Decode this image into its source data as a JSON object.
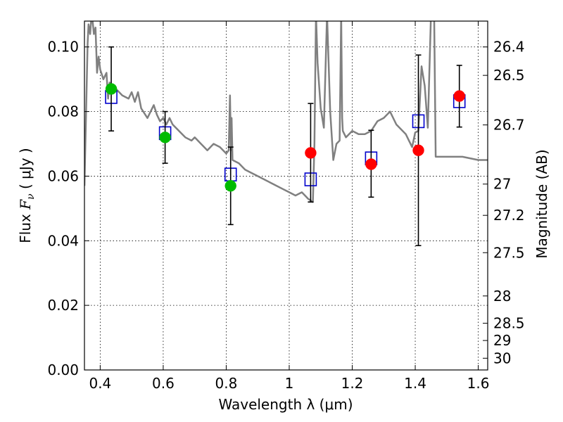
{
  "chart_data": {
    "type": "scatter",
    "xlabel": "Wavelength  λ (μm)",
    "ylabel": "Flux  F_ν  ( μJy )",
    "ylabel_parts": {
      "prefix": "Flux  ",
      "symbol": "F",
      "subscript": "ν",
      "suffix": "  ( μJy )"
    },
    "y2label": "Magnitude (AB)",
    "xlim": [
      0.35,
      1.63
    ],
    "ylim": [
      0.0,
      0.108
    ],
    "grid": true,
    "x_ticks": [
      {
        "value": 0.4,
        "label": "0.4"
      },
      {
        "value": 0.6,
        "label": "0.6"
      },
      {
        "value": 0.8,
        "label": "0.8"
      },
      {
        "value": 1.0,
        "label": "1"
      },
      {
        "value": 1.2,
        "label": "1.2"
      },
      {
        "value": 1.4,
        "label": "1.4"
      },
      {
        "value": 1.6,
        "label": "1.6"
      }
    ],
    "y_ticks": [
      {
        "value": 0.0,
        "label": "0.00"
      },
      {
        "value": 0.02,
        "label": "0.02"
      },
      {
        "value": 0.04,
        "label": "0.04"
      },
      {
        "value": 0.06,
        "label": "0.06"
      },
      {
        "value": 0.08,
        "label": "0.08"
      },
      {
        "value": 0.1,
        "label": "0.10"
      }
    ],
    "y2_ticks": [
      {
        "label": "26.4",
        "mag": 26.4
      },
      {
        "label": "26.5",
        "mag": 26.5
      },
      {
        "label": "26.7",
        "mag": 26.7
      },
      {
        "label": "27",
        "mag": 27.0
      },
      {
        "label": "27.2",
        "mag": 27.2
      },
      {
        "label": "27.5",
        "mag": 27.5
      },
      {
        "label": "28",
        "mag": 28.0
      },
      {
        "label": "28.5",
        "mag": 28.5
      },
      {
        "label": "29",
        "mag": 29.0
      },
      {
        "label": "30",
        "mag": 30.0
      }
    ],
    "observed_optical": {
      "color": "#00bb00",
      "points": [
        {
          "x": 0.435,
          "y": 0.087,
          "err_low": 0.074,
          "err_high": 0.1
        },
        {
          "x": 0.606,
          "y": 0.072,
          "err_low": 0.064,
          "err_high": 0.08
        },
        {
          "x": 0.814,
          "y": 0.057,
          "err_low": 0.045,
          "err_high": 0.069
        }
      ]
    },
    "observed_nir": {
      "color": "#ff0000",
      "points": [
        {
          "x": 1.068,
          "y": 0.0672,
          "err_low": 0.052,
          "err_high": 0.0825
        },
        {
          "x": 1.26,
          "y": 0.0637,
          "err_low": 0.0535,
          "err_high": 0.0742
        },
        {
          "x": 1.41,
          "y": 0.068,
          "err_low": 0.0385,
          "err_high": 0.0975
        },
        {
          "x": 1.54,
          "y": 0.0848,
          "err_low": 0.0752,
          "err_high": 0.0943
        }
      ]
    },
    "model_photometry": {
      "color": "#0000cc",
      "points": [
        {
          "x": 0.435,
          "y": 0.0845
        },
        {
          "x": 0.606,
          "y": 0.0733
        },
        {
          "x": 0.814,
          "y": 0.0605
        },
        {
          "x": 1.068,
          "y": 0.059
        },
        {
          "x": 1.26,
          "y": 0.0655
        },
        {
          "x": 1.41,
          "y": 0.077
        },
        {
          "x": 1.54,
          "y": 0.0832
        }
      ]
    },
    "model_spectrum": {
      "color": "#808080",
      "x": [
        0.35,
        0.36,
        0.363,
        0.368,
        0.372,
        0.376,
        0.38,
        0.385,
        0.39,
        0.395,
        0.4,
        0.41,
        0.42,
        0.425,
        0.43,
        0.44,
        0.45,
        0.47,
        0.49,
        0.5,
        0.51,
        0.52,
        0.53,
        0.55,
        0.57,
        0.58,
        0.59,
        0.6,
        0.61,
        0.62,
        0.63,
        0.65,
        0.67,
        0.69,
        0.7,
        0.72,
        0.74,
        0.76,
        0.78,
        0.8,
        0.808,
        0.812,
        0.815,
        0.817,
        0.82,
        0.84,
        0.86,
        0.88,
        0.9,
        0.92,
        0.94,
        0.96,
        0.98,
        1.0,
        1.02,
        1.04,
        1.05,
        1.06,
        1.075,
        1.08,
        1.085,
        1.09,
        1.1,
        1.11,
        1.12,
        1.13,
        1.14,
        1.15,
        1.16,
        1.165,
        1.168,
        1.17,
        1.18,
        1.2,
        1.22,
        1.24,
        1.26,
        1.28,
        1.3,
        1.32,
        1.34,
        1.36,
        1.37,
        1.38,
        1.39,
        1.4,
        1.41,
        1.42,
        1.43,
        1.44,
        1.45,
        1.46,
        1.465,
        1.47,
        1.5,
        1.55,
        1.6,
        1.63
      ],
      "y": [
        0.057,
        0.101,
        0.107,
        0.104,
        0.109,
        0.108,
        0.104,
        0.106,
        0.092,
        0.097,
        0.093,
        0.09,
        0.092,
        0.084,
        0.089,
        0.087,
        0.087,
        0.085,
        0.084,
        0.086,
        0.083,
        0.086,
        0.081,
        0.078,
        0.082,
        0.079,
        0.077,
        0.078,
        0.076,
        0.078,
        0.076,
        0.074,
        0.072,
        0.071,
        0.072,
        0.07,
        0.068,
        0.07,
        0.069,
        0.067,
        0.068,
        0.085,
        0.068,
        0.078,
        0.065,
        0.064,
        0.062,
        0.061,
        0.06,
        0.059,
        0.058,
        0.057,
        0.056,
        0.055,
        0.054,
        0.055,
        0.054,
        0.053,
        0.052,
        0.07,
        0.11,
        0.095,
        0.081,
        0.075,
        0.11,
        0.08,
        0.065,
        0.07,
        0.071,
        0.11,
        0.078,
        0.074,
        0.072,
        0.074,
        0.073,
        0.073,
        0.074,
        0.077,
        0.078,
        0.08,
        0.076,
        0.074,
        0.073,
        0.071,
        0.069,
        0.0735,
        0.074,
        0.094,
        0.088,
        0.075,
        0.11,
        0.11,
        0.066,
        0.066,
        0.066,
        0.066,
        0.065,
        0.065
      ]
    }
  }
}
